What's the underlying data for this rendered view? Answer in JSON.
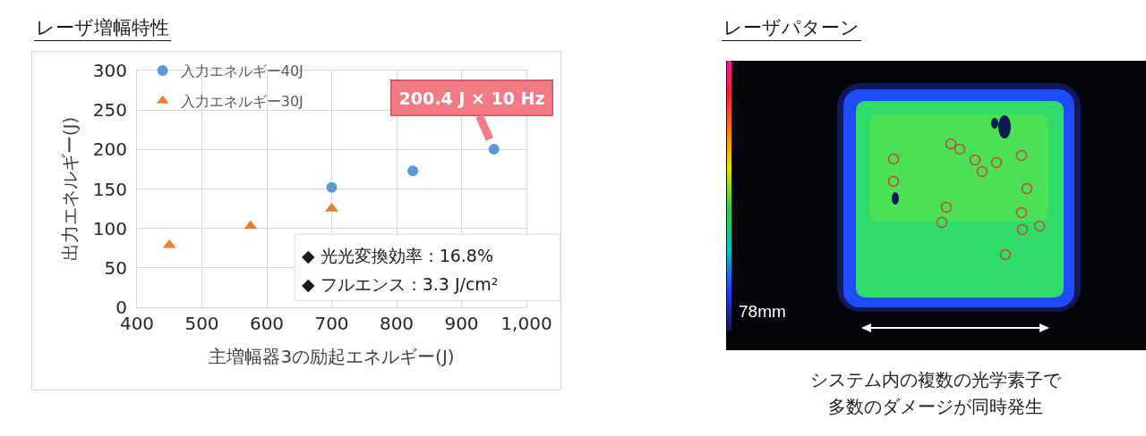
{
  "chart_data": [
    {
      "type": "scatter",
      "title": "レーザ増幅特性",
      "xlabel": "主増幅器3の励起エネルギー(J)",
      "ylabel": "出力エネルギー(J)",
      "series": [
        {
          "name": "入力エネルギー40J",
          "color": "#5b9bd5",
          "marker": "circle",
          "x": [
            700,
            825,
            950
          ],
          "values": [
            152,
            173,
            200.4
          ]
        },
        {
          "name": "入力エネルギー30J",
          "color": "#ed7d31",
          "marker": "triangle",
          "x": [
            450,
            575,
            700
          ],
          "values": [
            79,
            103,
            125
          ]
        }
      ],
      "xlim": [
        400,
        1000
      ],
      "xticks": [
        400,
        500,
        600,
        700,
        800,
        900,
        {
          "value": 1000,
          "label": "1,000"
        }
      ],
      "ylim": [
        0,
        300
      ],
      "yticks": [
        0,
        50,
        100,
        150,
        200,
        250,
        300
      ],
      "grid": true,
      "legend": "top left",
      "annotations": [
        {
          "text": "200.4 J × 10 Hz",
          "x": 950,
          "y": 200.4
        },
        "◆ 光光変換効率：16.8%",
        "◆ フルエンス：3.3 J/cm²"
      ]
    },
    {
      "type": "other",
      "title": "レーザパターン",
      "annotations": [
        "78mm",
        "システム内の複数の光学素子で",
        "多数のダメージが同時発生"
      ]
    }
  ]
}
